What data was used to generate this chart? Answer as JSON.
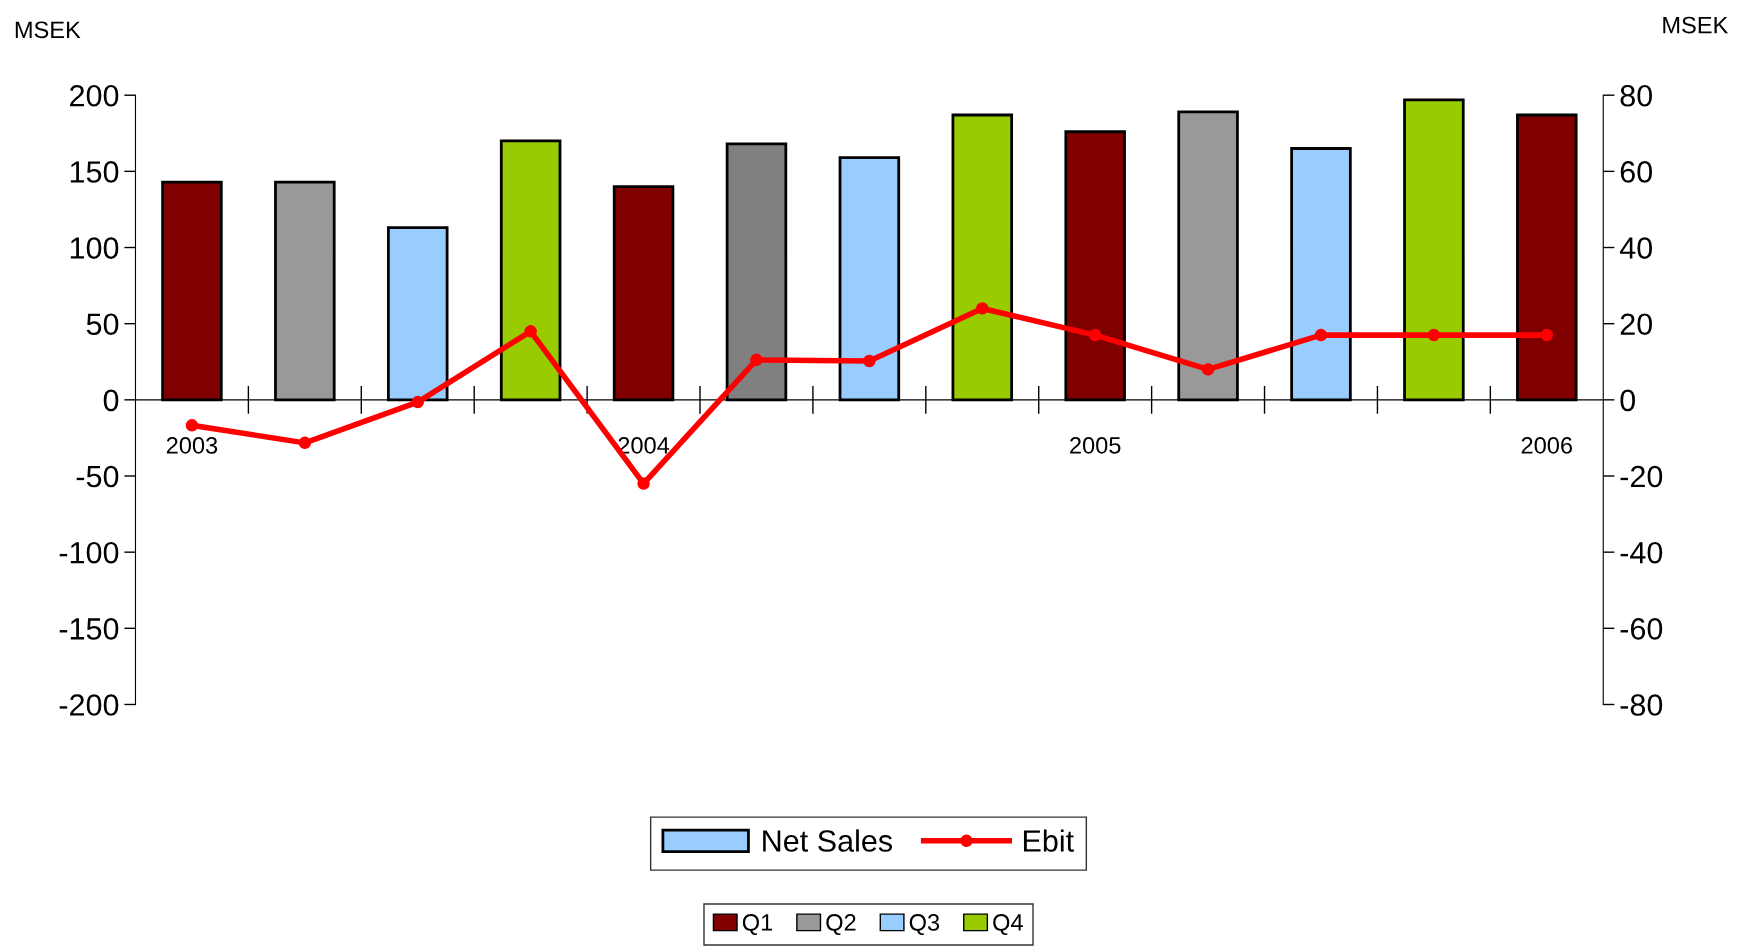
{
  "chart_data": {
    "type": "bar",
    "ylabel": "MSEK",
    "y2label": "MSEK",
    "categories": [
      "2003",
      null,
      null,
      null,
      "2004",
      null,
      null,
      null,
      "2005",
      null,
      null,
      null,
      "2006"
    ],
    "series": [
      {
        "name": "Net Sales",
        "color": "#99ccff",
        "colors": [
          "#800000",
          "#999999",
          "#99ccff",
          "#99cc00",
          "#800000",
          "#808080",
          "#99ccff",
          "#99cc00",
          "#800000",
          "#999999",
          "#99ccff",
          "#99cc00",
          "#800000"
        ],
        "values": [
          143,
          143,
          113,
          170,
          140,
          168,
          159,
          187,
          176,
          189,
          165,
          197,
          187
        ]
      },
      {
        "name": "Ebit",
        "type": "line",
        "axis": "y2",
        "color": "#ff0000",
        "marker": "circle",
        "values": [
          -6.7,
          -11.3,
          -0.6,
          18,
          -22,
          10.5,
          10.2,
          24,
          17,
          8,
          17,
          17,
          17
        ]
      }
    ],
    "ylim": [
      -200,
      200
    ],
    "yticks": [
      -200,
      -150,
      -100,
      -50,
      0,
      50,
      100,
      150,
      200
    ],
    "y2lim": [
      -80,
      80
    ],
    "y2ticks": [
      -80,
      -60,
      -40,
      -20,
      0,
      20,
      40,
      60,
      80
    ],
    "legend": "bottom",
    "grid": false,
    "annotations": [
      "Q1",
      "Q2",
      "Q3",
      "Q4"
    ]
  }
}
